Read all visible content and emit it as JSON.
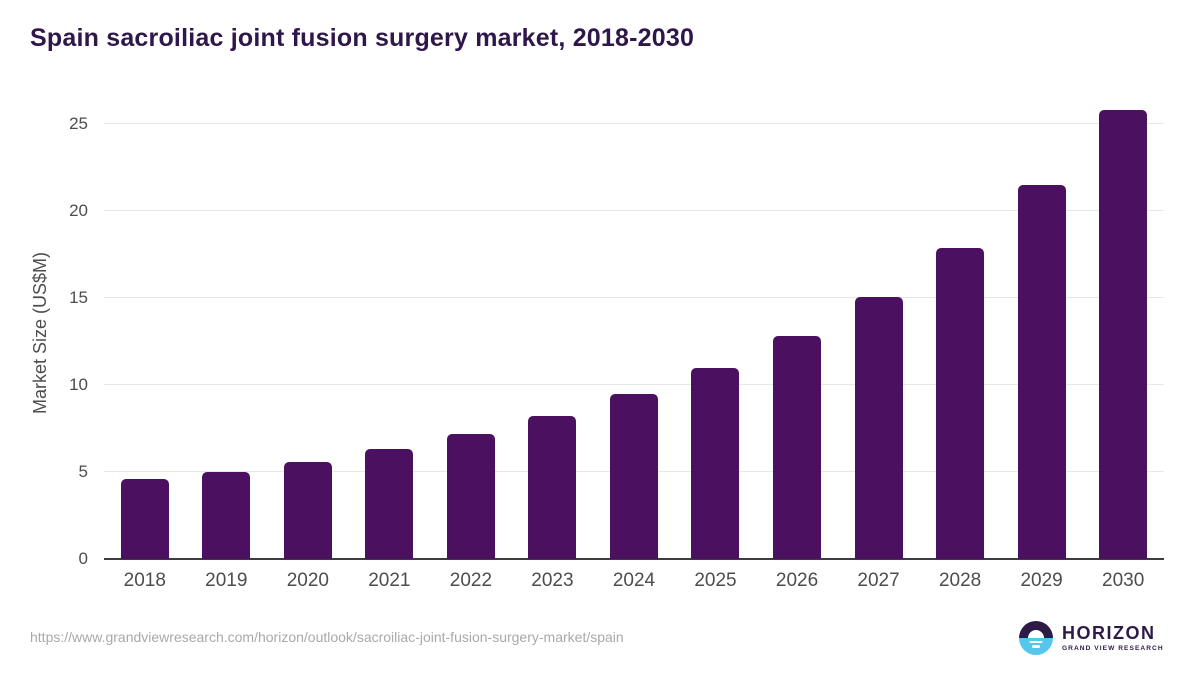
{
  "title": "Spain sacroiliac joint fusion surgery market, 2018-2030",
  "colors": {
    "background": "#ffffff",
    "bar": "#4b1060",
    "title_text": "#2f164b",
    "axis_text": "#4d4d4d",
    "gridline": "#e7e7e7",
    "axis_line": "#3d3d3d",
    "url_text": "#a9a9a9",
    "logo_purple": "#2e1a47",
    "logo_blue": "#55c6ec"
  },
  "chart_data": {
    "type": "bar",
    "title": "Spain sacroiliac joint fusion surgery market, 2018-2030",
    "categories": [
      "2018",
      "2019",
      "2020",
      "2021",
      "2022",
      "2023",
      "2024",
      "2025",
      "2026",
      "2027",
      "2028",
      "2029",
      "2030"
    ],
    "values": [
      4.6,
      5.0,
      5.6,
      6.3,
      7.2,
      8.2,
      9.5,
      11.0,
      12.8,
      15.1,
      17.9,
      21.5,
      25.8
    ],
    "xlabel": "",
    "ylabel": "Market Size (US$M)",
    "ylim": [
      0,
      26
    ],
    "yticks": [
      0,
      5,
      10,
      15,
      20,
      25
    ],
    "grid": true,
    "legend": "none",
    "bar_color": "#4b1060"
  },
  "footer": {
    "source_url": "https://www.grandviewresearch.com/horizon/outlook/sacroiliac-joint-fusion-surgery-market/spain",
    "logo": {
      "name": "HORIZON",
      "subtitle": "GRAND VIEW RESEARCH"
    }
  }
}
